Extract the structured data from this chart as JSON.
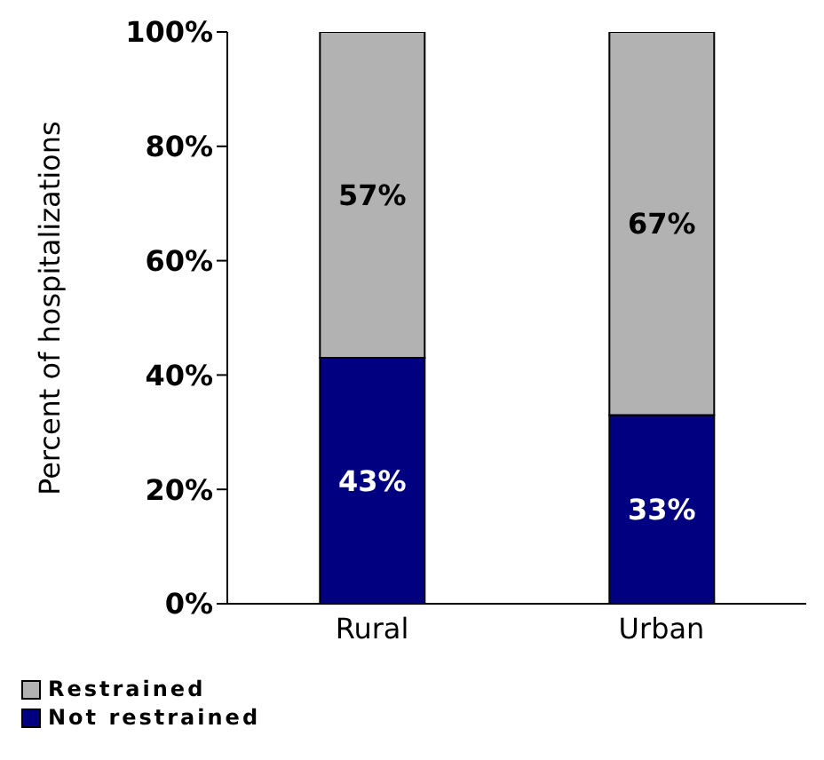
{
  "chart_data": {
    "type": "bar",
    "stacked": true,
    "ylabel": "Percent of hospitalizations",
    "categories": [
      "Rural",
      "Urban"
    ],
    "series": [
      {
        "name": "Not restrained",
        "color": "#000080",
        "values": [
          43,
          33
        ],
        "value_labels": [
          "43%",
          "33%"
        ]
      },
      {
        "name": "Restrained",
        "color": "#b2b2b2",
        "values": [
          57,
          67
        ],
        "value_labels": [
          "57%",
          "67%"
        ]
      }
    ],
    "ylim": [
      0,
      100
    ],
    "yticks": [
      {
        "value": 0,
        "label": "0%"
      },
      {
        "value": 20,
        "label": "20%"
      },
      {
        "value": 40,
        "label": "40%"
      },
      {
        "value": 60,
        "label": "60%"
      },
      {
        "value": 80,
        "label": "80%"
      },
      {
        "value": 100,
        "label": "100%"
      }
    ],
    "grid": false,
    "legend": "bottom left"
  }
}
